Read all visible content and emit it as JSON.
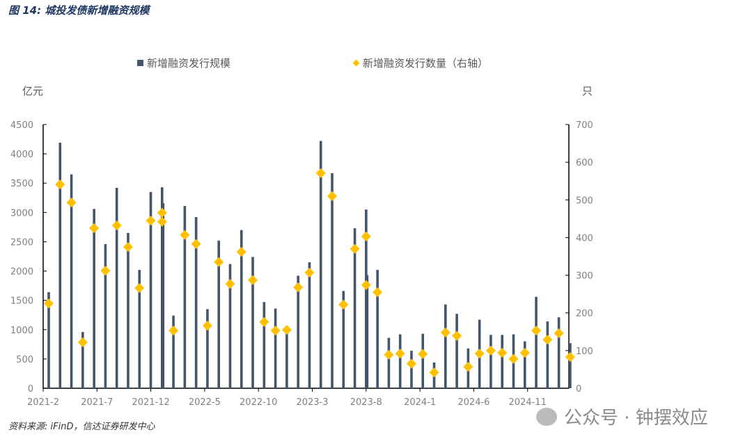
{
  "title": "图 14:  城投发债新增融资规模",
  "source": "资料来源: iFinD，信达证券研发中心",
  "watermark": "公众号 · 钟摆效应",
  "colors": {
    "bar": "#44546a",
    "marker": "#ffc000"
  },
  "chart_data": {
    "type": "bar+scatter",
    "xlabel": "",
    "ylabel_left": "亿元",
    "ylabel_right": "只",
    "ylim_left": [
      0,
      4500
    ],
    "ylim_right": [
      0,
      700
    ],
    "yticks_left": [
      0,
      500,
      1000,
      1500,
      2000,
      2500,
      3000,
      3500,
      4000,
      4500
    ],
    "yticks_right": [
      0,
      100,
      200,
      300,
      400,
      500,
      600,
      700
    ],
    "xtick_labels": [
      "2021-2",
      "2021-7",
      "2021-12",
      "2022-5",
      "2022-10",
      "2023-3",
      "2023-8",
      "2024-1",
      "2024-6",
      "2024-11"
    ],
    "grid": false,
    "legend_placement": "top",
    "series": [
      {
        "name": "新增融资发行规模",
        "type": "bar",
        "axis": "left",
        "values": [
          1640,
          4190,
          3650,
          960,
          3060,
          2460,
          3420,
          2650,
          2020,
          3350,
          3430,
          3160,
          1240,
          3110,
          2920,
          1350,
          2520,
          2120,
          2700,
          2240,
          1470,
          1360,
          980,
          1920,
          2150,
          4220,
          3670,
          1660,
          2730,
          3050,
          1930,
          2020,
          860,
          920,
          640,
          930,
          440,
          1430,
          1270,
          680,
          1170,
          910,
          910,
          920,
          800,
          1560,
          1140,
          1210,
          770
        ]
      },
      {
        "name": "新增融资发行数量（右轴）",
        "type": "scatter",
        "axis": "right",
        "values": [
          225,
          541,
          493,
          122,
          425,
          312,
          432,
          375,
          266,
          445,
          466,
          442,
          153,
          407,
          383,
          166,
          335,
          277,
          362,
          287,
          176,
          153,
          155,
          268,
          307,
          571,
          510,
          222,
          370,
          403,
          274,
          255,
          89,
          92,
          65,
          91,
          42,
          148,
          139,
          57,
          92,
          100,
          94,
          78,
          94,
          153,
          129,
          146,
          83
        ]
      }
    ],
    "overlap_pairs": [
      [
        10,
        11
      ],
      [
        29,
        30
      ]
    ]
  }
}
